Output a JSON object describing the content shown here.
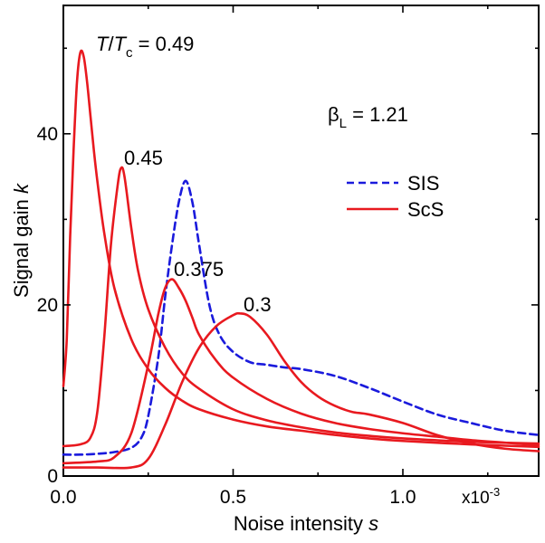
{
  "chart_data": {
    "type": "line",
    "xlabel": {
      "text": "Noise intensity ",
      "italic": "s"
    },
    "ylabel": {
      "text": "Signal gain ",
      "italic": "k"
    },
    "x_multiplier": "x10",
    "x_multiplier_exp": "-3",
    "xlim": [
      0,
      1.4
    ],
    "ylim": [
      0,
      55
    ],
    "x_ticks": [
      {
        "value": 0,
        "label": "0.0"
      },
      {
        "value": 0.5,
        "label": "0.5"
      },
      {
        "value": 1.0,
        "label": "1.0"
      }
    ],
    "y_ticks": [
      {
        "value": 0,
        "label": "0"
      },
      {
        "value": 20,
        "label": "20"
      },
      {
        "value": 40,
        "label": "40"
      }
    ],
    "temp_label": {
      "T": "T",
      "slash": "/",
      "Tc": "T",
      "sub": "c",
      "rest": " = 0.49"
    },
    "beta_label": {
      "beta": "β",
      "sub": "L",
      "rest": " = 1.21"
    },
    "legend": {
      "position": "right",
      "items": [
        {
          "label": "SIS",
          "style": "dashed",
          "color": "#1a1adc"
        },
        {
          "label": "ScS",
          "style": "solid",
          "color": "#e8191f"
        }
      ]
    },
    "curve_labels": [
      "0.45",
      "0.375",
      "0.3"
    ],
    "series": [
      {
        "name": "SIS",
        "style": "dashed",
        "color": "#1a1adc",
        "x": [
          0,
          0.05,
          0.1,
          0.15,
          0.2,
          0.23,
          0.25,
          0.28,
          0.3,
          0.32,
          0.34,
          0.36,
          0.38,
          0.4,
          0.43,
          0.46,
          0.5,
          0.55,
          0.6,
          0.65,
          0.7,
          0.8,
          0.9,
          1.0,
          1.1,
          1.2,
          1.3,
          1.4
        ],
        "y": [
          2.5,
          2.5,
          2.6,
          2.8,
          3.3,
          4.5,
          7,
          14,
          21,
          27,
          32,
          34.5,
          32,
          27,
          20,
          16.5,
          14.5,
          13.3,
          13,
          12.7,
          12.5,
          11.7,
          10.3,
          8.7,
          7.2,
          6.2,
          5.3,
          4.8
        ]
      },
      {
        "name": "ScS",
        "label": "T/Tc = 0.49",
        "style": "solid",
        "color": "#e8191f",
        "x": [
          0,
          0.01,
          0.02,
          0.03,
          0.04,
          0.05,
          0.06,
          0.07,
          0.08,
          0.09,
          0.1,
          0.12,
          0.15,
          0.2,
          0.25,
          0.3,
          0.35,
          0.4,
          0.5,
          0.6,
          0.7,
          0.8,
          0.9,
          1.0,
          1.2,
          1.4
        ],
        "y": [
          10.5,
          16,
          28,
          38,
          46,
          49.5,
          49,
          46,
          42,
          38,
          34.5,
          28.5,
          22,
          16,
          12.5,
          10.3,
          8.8,
          7.8,
          6.6,
          5.8,
          5.3,
          4.8,
          4.4,
          4.1,
          3.7,
          3.4
        ]
      },
      {
        "name": "ScS",
        "label": "0.45",
        "style": "solid",
        "color": "#e8191f",
        "x": [
          0,
          0.05,
          0.08,
          0.1,
          0.12,
          0.14,
          0.16,
          0.17,
          0.18,
          0.2,
          0.22,
          0.25,
          0.3,
          0.35,
          0.4,
          0.5,
          0.6,
          0.7,
          0.8,
          0.9,
          1.0,
          1.2,
          1.4
        ],
        "y": [
          3.5,
          3.7,
          4.5,
          7.5,
          16,
          27,
          34,
          36,
          35,
          29,
          24,
          19.5,
          15,
          12,
          10.2,
          7.8,
          6.5,
          5.7,
          5.1,
          4.7,
          4.4,
          4,
          3.8
        ]
      },
      {
        "name": "ScS",
        "label": "0.375",
        "style": "solid",
        "color": "#e8191f",
        "x": [
          0,
          0.1,
          0.15,
          0.2,
          0.25,
          0.28,
          0.3,
          0.32,
          0.34,
          0.36,
          0.38,
          0.4,
          0.45,
          0.5,
          0.6,
          0.7,
          0.8,
          0.9,
          1.0,
          1.1,
          1.2,
          1.3,
          1.4
        ],
        "y": [
          1.5,
          1.7,
          2.2,
          5,
          13,
          19,
          22,
          23,
          22,
          20.5,
          18.5,
          16.5,
          13.5,
          11.5,
          9,
          7.3,
          6.2,
          5.5,
          5,
          4.6,
          4.2,
          3.9,
          3.6
        ]
      },
      {
        "name": "ScS",
        "label": "0.3",
        "style": "solid",
        "color": "#e8191f",
        "x": [
          0,
          0.1,
          0.2,
          0.25,
          0.3,
          0.35,
          0.4,
          0.45,
          0.5,
          0.52,
          0.55,
          0.6,
          0.65,
          0.7,
          0.75,
          0.8,
          0.85,
          0.9,
          1.0,
          1.1,
          1.2,
          1.3,
          1.4
        ],
        "y": [
          1,
          1,
          1,
          2,
          6,
          11,
          15,
          17.5,
          18.8,
          19,
          18.6,
          16.5,
          13.5,
          11,
          9.3,
          8.2,
          7.5,
          7.2,
          6.2,
          4.8,
          3.8,
          3.2,
          2.9
        ]
      }
    ]
  }
}
